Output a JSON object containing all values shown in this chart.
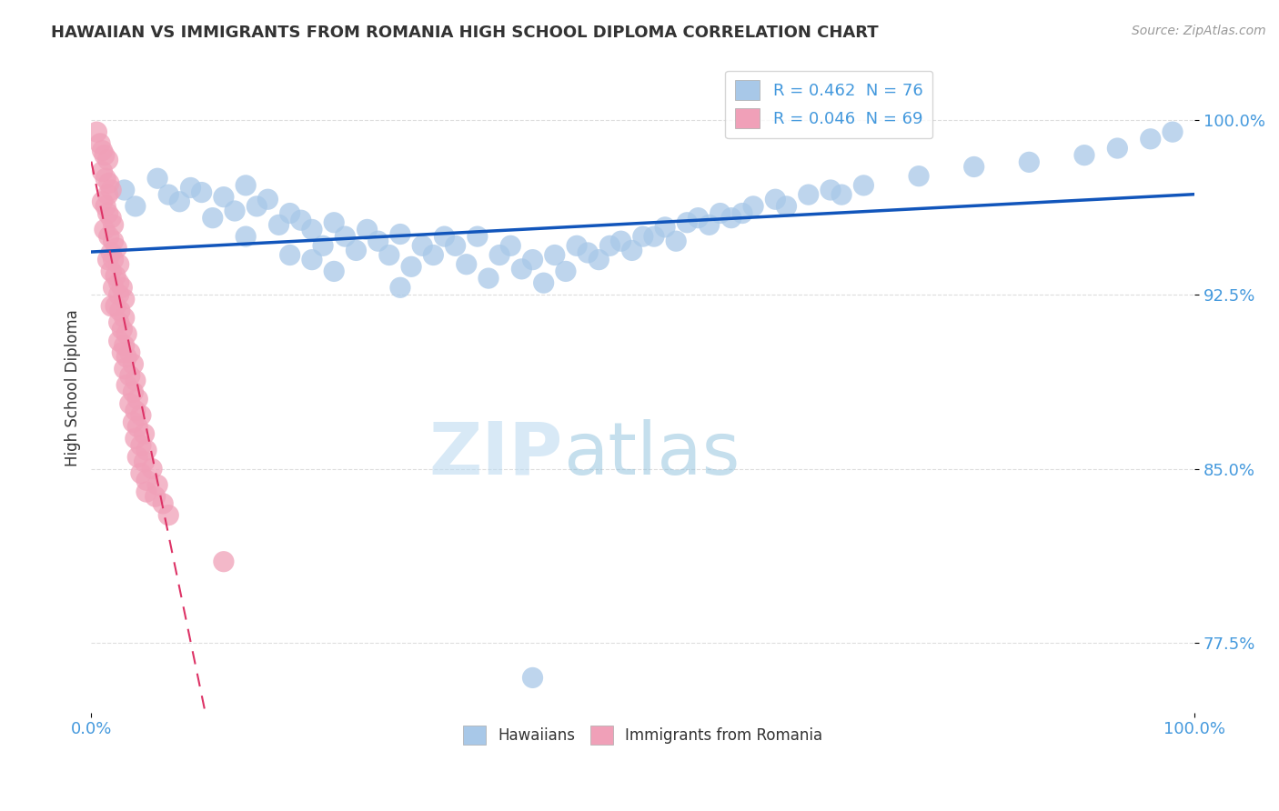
{
  "title": "HAWAIIAN VS IMMIGRANTS FROM ROMANIA HIGH SCHOOL DIPLOMA CORRELATION CHART",
  "source": "Source: ZipAtlas.com",
  "ylabel": "High School Diploma",
  "xlim": [
    0,
    1
  ],
  "ylim": [
    0.745,
    1.025
  ],
  "yticks": [
    0.775,
    0.85,
    0.925,
    1.0
  ],
  "ytick_labels": [
    "77.5%",
    "85.0%",
    "92.5%",
    "100.0%"
  ],
  "xticks": [
    0.0,
    1.0
  ],
  "xtick_labels": [
    "0.0%",
    "100.0%"
  ],
  "legend_R_blue": "R = 0.462",
  "legend_N_blue": "N = 76",
  "legend_R_pink": "R = 0.046",
  "legend_N_pink": "N = 69",
  "watermark_zip": "ZIP",
  "watermark_atlas": "atlas",
  "blue_color": "#a8c8e8",
  "pink_color": "#f0a0b8",
  "blue_line_color": "#1155bb",
  "pink_line_color": "#dd3366",
  "title_color": "#333333",
  "source_color": "#999999",
  "axis_label_color": "#333333",
  "tick_label_color": "#4499dd",
  "background_color": "#ffffff",
  "grid_color": "#dddddd",
  "hawaiians_x": [
    0.03,
    0.07,
    0.04,
    0.06,
    0.09,
    0.08,
    0.1,
    0.12,
    0.14,
    0.11,
    0.13,
    0.15,
    0.16,
    0.18,
    0.14,
    0.17,
    0.19,
    0.2,
    0.22,
    0.18,
    0.21,
    0.23,
    0.25,
    0.2,
    0.24,
    0.26,
    0.28,
    0.22,
    0.27,
    0.3,
    0.32,
    0.29,
    0.31,
    0.33,
    0.35,
    0.28,
    0.34,
    0.37,
    0.38,
    0.36,
    0.4,
    0.39,
    0.42,
    0.44,
    0.41,
    0.45,
    0.43,
    0.47,
    0.46,
    0.48,
    0.5,
    0.52,
    0.49,
    0.51,
    0.54,
    0.55,
    0.53,
    0.57,
    0.56,
    0.6,
    0.58,
    0.62,
    0.59,
    0.65,
    0.63,
    0.67,
    0.7,
    0.68,
    0.75,
    0.8,
    0.85,
    0.9,
    0.93,
    0.96,
    0.98,
    0.4
  ],
  "hawaiians_y": [
    0.97,
    0.968,
    0.963,
    0.975,
    0.971,
    0.965,
    0.969,
    0.967,
    0.972,
    0.958,
    0.961,
    0.963,
    0.966,
    0.96,
    0.95,
    0.955,
    0.957,
    0.953,
    0.956,
    0.942,
    0.946,
    0.95,
    0.953,
    0.94,
    0.944,
    0.948,
    0.951,
    0.935,
    0.942,
    0.946,
    0.95,
    0.937,
    0.942,
    0.946,
    0.95,
    0.928,
    0.938,
    0.942,
    0.946,
    0.932,
    0.94,
    0.936,
    0.942,
    0.946,
    0.93,
    0.943,
    0.935,
    0.946,
    0.94,
    0.948,
    0.95,
    0.954,
    0.944,
    0.95,
    0.956,
    0.958,
    0.948,
    0.96,
    0.955,
    0.963,
    0.958,
    0.966,
    0.96,
    0.968,
    0.963,
    0.97,
    0.972,
    0.968,
    0.976,
    0.98,
    0.982,
    0.985,
    0.988,
    0.992,
    0.995,
    0.76
  ],
  "romania_x": [
    0.005,
    0.008,
    0.01,
    0.012,
    0.015,
    0.01,
    0.013,
    0.016,
    0.018,
    0.015,
    0.01,
    0.013,
    0.015,
    0.018,
    0.02,
    0.012,
    0.016,
    0.02,
    0.023,
    0.018,
    0.015,
    0.02,
    0.025,
    0.018,
    0.022,
    0.025,
    0.028,
    0.02,
    0.025,
    0.03,
    0.018,
    0.022,
    0.026,
    0.03,
    0.025,
    0.028,
    0.032,
    0.025,
    0.03,
    0.035,
    0.028,
    0.032,
    0.038,
    0.03,
    0.035,
    0.04,
    0.032,
    0.038,
    0.042,
    0.035,
    0.04,
    0.045,
    0.038,
    0.042,
    0.048,
    0.04,
    0.045,
    0.05,
    0.042,
    0.048,
    0.055,
    0.045,
    0.05,
    0.06,
    0.05,
    0.058,
    0.065,
    0.07,
    0.12
  ],
  "romania_y": [
    0.995,
    0.99,
    0.987,
    0.985,
    0.983,
    0.978,
    0.975,
    0.973,
    0.97,
    0.968,
    0.965,
    0.963,
    0.96,
    0.958,
    0.955,
    0.953,
    0.95,
    0.948,
    0.945,
    0.943,
    0.94,
    0.94,
    0.938,
    0.935,
    0.933,
    0.93,
    0.928,
    0.928,
    0.925,
    0.923,
    0.92,
    0.92,
    0.918,
    0.915,
    0.913,
    0.91,
    0.908,
    0.905,
    0.903,
    0.9,
    0.9,
    0.898,
    0.895,
    0.893,
    0.89,
    0.888,
    0.886,
    0.883,
    0.88,
    0.878,
    0.875,
    0.873,
    0.87,
    0.868,
    0.865,
    0.863,
    0.86,
    0.858,
    0.855,
    0.853,
    0.85,
    0.848,
    0.845,
    0.843,
    0.84,
    0.838,
    0.835,
    0.83,
    0.81
  ]
}
